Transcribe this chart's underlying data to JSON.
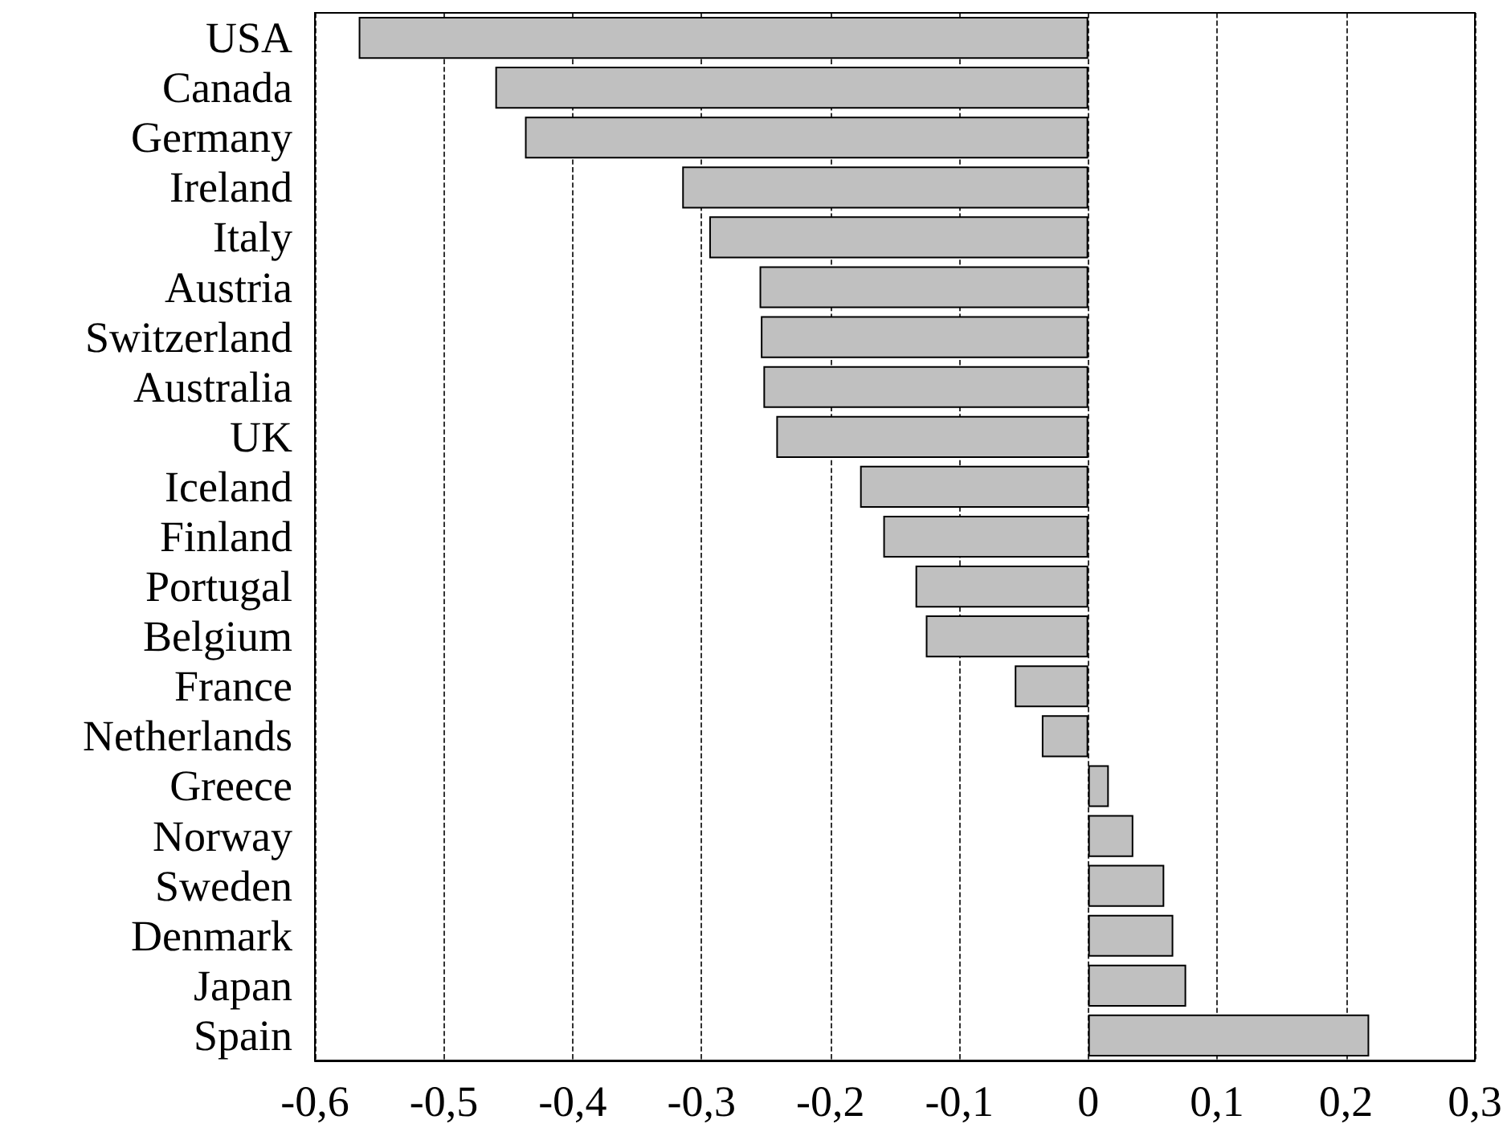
{
  "chart_data": {
    "type": "bar",
    "orientation": "horizontal",
    "categories": [
      "USA",
      "Canada",
      "Germany",
      "Ireland",
      "Italy",
      "Austria",
      "Switzerland",
      "Australia",
      "UK",
      "Iceland",
      "Finland",
      "Portugal",
      "Belgium",
      "France",
      "Netherlands",
      "Greece",
      "Norway",
      "Sweden",
      "Denmark",
      "Japan",
      "Spain"
    ],
    "values": [
      -0.566,
      -0.46,
      -0.437,
      -0.315,
      -0.294,
      -0.255,
      -0.254,
      -0.252,
      -0.242,
      -0.177,
      -0.159,
      -0.134,
      -0.126,
      -0.057,
      -0.036,
      0.016,
      0.035,
      0.059,
      0.066,
      0.076,
      0.218
    ],
    "color": "#c0c0c0",
    "xlim": [
      -0.6,
      0.3
    ],
    "xticks": [
      {
        "value": -0.6,
        "label": "-0,6"
      },
      {
        "value": -0.5,
        "label": "-0,5"
      },
      {
        "value": -0.4,
        "label": "-0,4"
      },
      {
        "value": -0.3,
        "label": "-0,3"
      },
      {
        "value": -0.2,
        "label": "-0,2"
      },
      {
        "value": -0.1,
        "label": "-0,1"
      },
      {
        "value": 0,
        "label": "0"
      },
      {
        "value": 0.1,
        "label": "0,1"
      },
      {
        "value": 0.2,
        "label": "0,2"
      },
      {
        "value": 0.3,
        "label": "0,3"
      }
    ],
    "grid": "x"
  }
}
